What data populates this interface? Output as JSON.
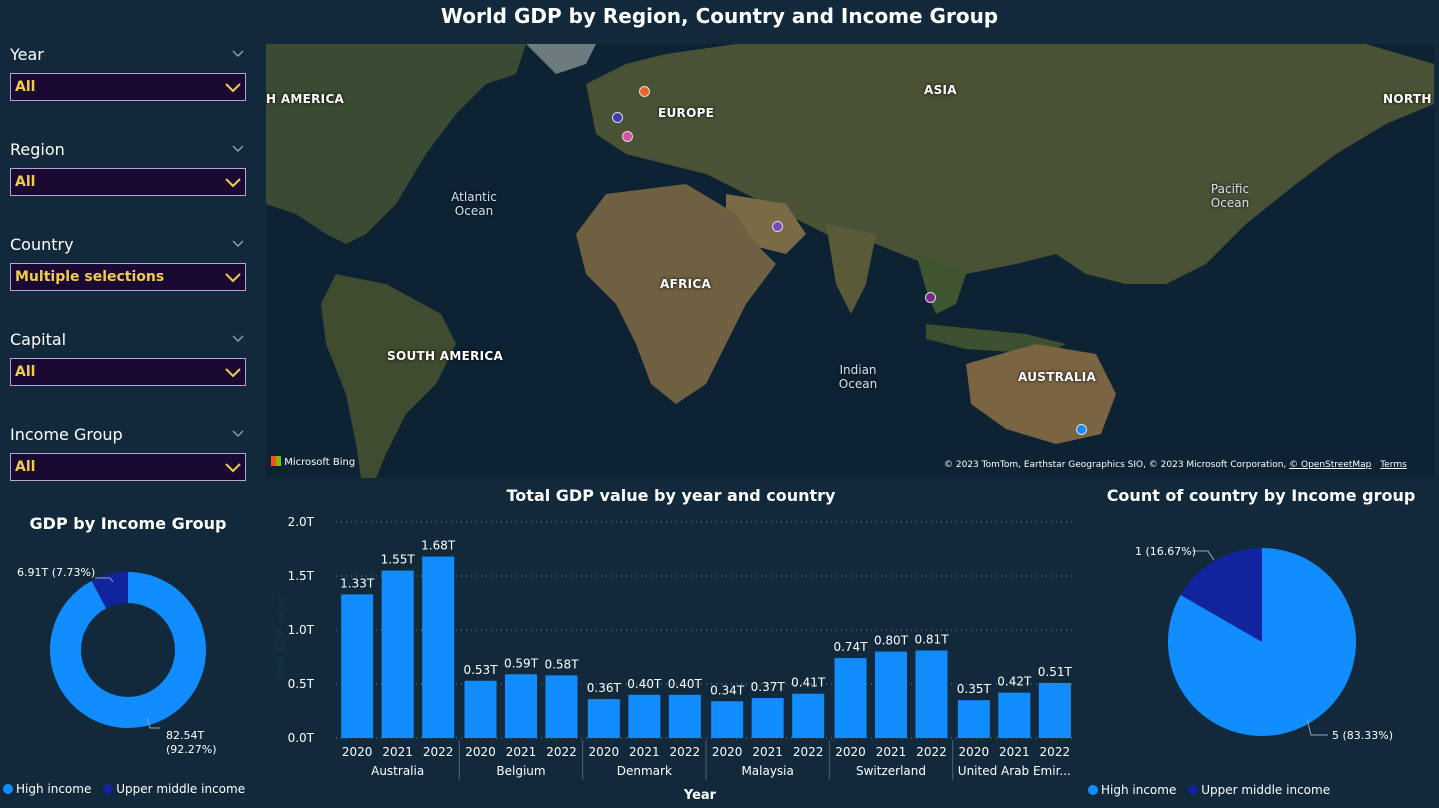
{
  "page": {
    "title": "World GDP by Region, Country and Income Group"
  },
  "slicers": [
    {
      "label": "Year",
      "value": "All"
    },
    {
      "label": "Region",
      "value": "All"
    },
    {
      "label": "Country",
      "value": "Multiple selections"
    },
    {
      "label": "Capital",
      "value": "All"
    },
    {
      "label": "Income Group",
      "value": "All"
    }
  ],
  "map": {
    "labels": {
      "north_america": "H AMERICA",
      "europe": "EUROPE",
      "asia": "ASIA",
      "north": "NORTH",
      "atlantic": "Atlantic Ocean",
      "pacific": "Pacific Ocean",
      "africa": "AFRICA",
      "south_america": "SOUTH AMERICA",
      "indian": "Indian Ocean",
      "australia": "AUSTRALIA"
    },
    "bing": "Microsoft Bing",
    "credit": "© 2023 TomTom, Earthstar Geographics SIO, © 2023 Microsoft Corporation,",
    "osm": "© OpenStreetMap",
    "terms": "Terms",
    "colors": {
      "denmark": "#e8662a",
      "belgium": "#3a3ea8",
      "switzerland": "#d94fa0",
      "uae": "#7b4ab8",
      "malaysia": "#7b2b86",
      "australia": "#118dff"
    }
  },
  "donut_panel": {
    "title": "GDP by Income Group",
    "labels": {
      "upper": "6.91T (7.73%)",
      "high_value": "82.54T",
      "high_pct": "(92.27%)"
    },
    "legend": [
      "High income",
      "Upper middle income"
    ]
  },
  "pie_panel": {
    "title": "Count of country by Income group",
    "labels": {
      "upper": "1 (16.67%)",
      "high": "5 (83.33%)"
    },
    "legend": [
      "High income",
      "Upper middle income"
    ]
  },
  "colors": {
    "high_income": "#118dff",
    "upper_middle_income": "#12239e",
    "bar": "#118dff"
  },
  "chart_data": [
    {
      "type": "bar",
      "title": "Total GDP value by year and country",
      "xlabel": "Year",
      "ylabel": "Total GDP value",
      "ylim": [
        0,
        2.0
      ],
      "yticks": [
        "0.0T",
        "0.5T",
        "1.0T",
        "1.5T",
        "2.0T"
      ],
      "grid": true,
      "groups": [
        {
          "name": "Australia",
          "years": [
            "2020",
            "2021",
            "2022"
          ],
          "values": [
            1.33,
            1.55,
            1.68
          ],
          "labels": [
            "1.33T",
            "1.55T",
            "1.68T"
          ]
        },
        {
          "name": "Belgium",
          "years": [
            "2020",
            "2021",
            "2022"
          ],
          "values": [
            0.53,
            0.59,
            0.58
          ],
          "labels": [
            "0.53T",
            "0.59T",
            "0.58T"
          ]
        },
        {
          "name": "Denmark",
          "years": [
            "2020",
            "2021",
            "2022"
          ],
          "values": [
            0.36,
            0.4,
            0.4
          ],
          "labels": [
            "0.36T",
            "0.40T",
            "0.40T"
          ]
        },
        {
          "name": "Malaysia",
          "years": [
            "2020",
            "2021",
            "2022"
          ],
          "values": [
            0.34,
            0.37,
            0.41
          ],
          "labels": [
            "0.34T",
            "0.37T",
            "0.41T"
          ]
        },
        {
          "name": "Switzerland",
          "years": [
            "2020",
            "2021",
            "2022"
          ],
          "values": [
            0.74,
            0.8,
            0.81
          ],
          "labels": [
            "0.74T",
            "0.80T",
            "0.81T"
          ]
        },
        {
          "name": "United Arab Emir...",
          "years": [
            "2020",
            "2021",
            "2022"
          ],
          "values": [
            0.35,
            0.42,
            0.51
          ],
          "labels": [
            "0.35T",
            "0.42T",
            "0.51T"
          ]
        }
      ]
    },
    {
      "type": "pie",
      "title": "GDP by Income Group",
      "style": "donut",
      "categories": [
        "High income",
        "Upper middle income"
      ],
      "values": [
        82.54,
        6.91
      ],
      "unit": "T",
      "percent": [
        92.27,
        7.73
      ]
    },
    {
      "type": "pie",
      "title": "Count of country by Income group",
      "categories": [
        "High income",
        "Upper middle income"
      ],
      "values": [
        5,
        1
      ],
      "percent": [
        83.33,
        16.67
      ]
    }
  ]
}
